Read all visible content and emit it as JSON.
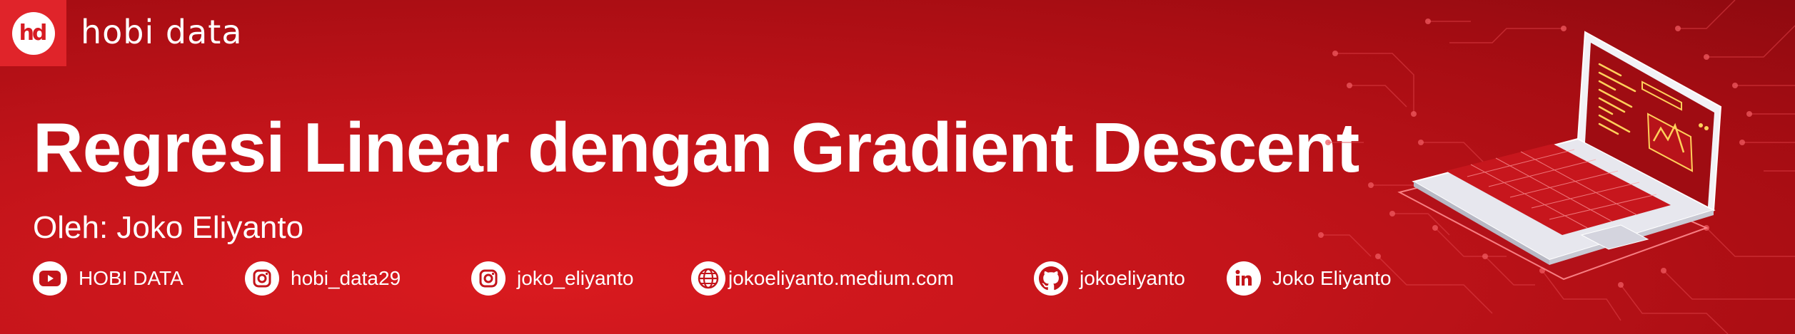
{
  "brand": {
    "logo_text": "hd",
    "name": "hobi data"
  },
  "title": "Regresi Linear dengan Gradient Descent",
  "author": "Oleh: Joko Eliyanto",
  "socials": [
    {
      "icon": "youtube-icon",
      "label": "HOBI DATA"
    },
    {
      "icon": "instagram-icon",
      "label": "hobi_data29"
    },
    {
      "icon": "instagram-icon",
      "label": "joko_eliyanto"
    },
    {
      "icon": "globe-icon",
      "label": "jokoeliyanto.medium.com"
    },
    {
      "icon": "github-icon",
      "label": "jokoeliyanto"
    },
    {
      "icon": "linkedin-icon",
      "label": "Joko Eliyanto"
    }
  ],
  "colors": {
    "background": "#c3141a",
    "logo_box": "#e0242a",
    "text": "#ffffff",
    "icon_glyph": "#c3141a"
  }
}
